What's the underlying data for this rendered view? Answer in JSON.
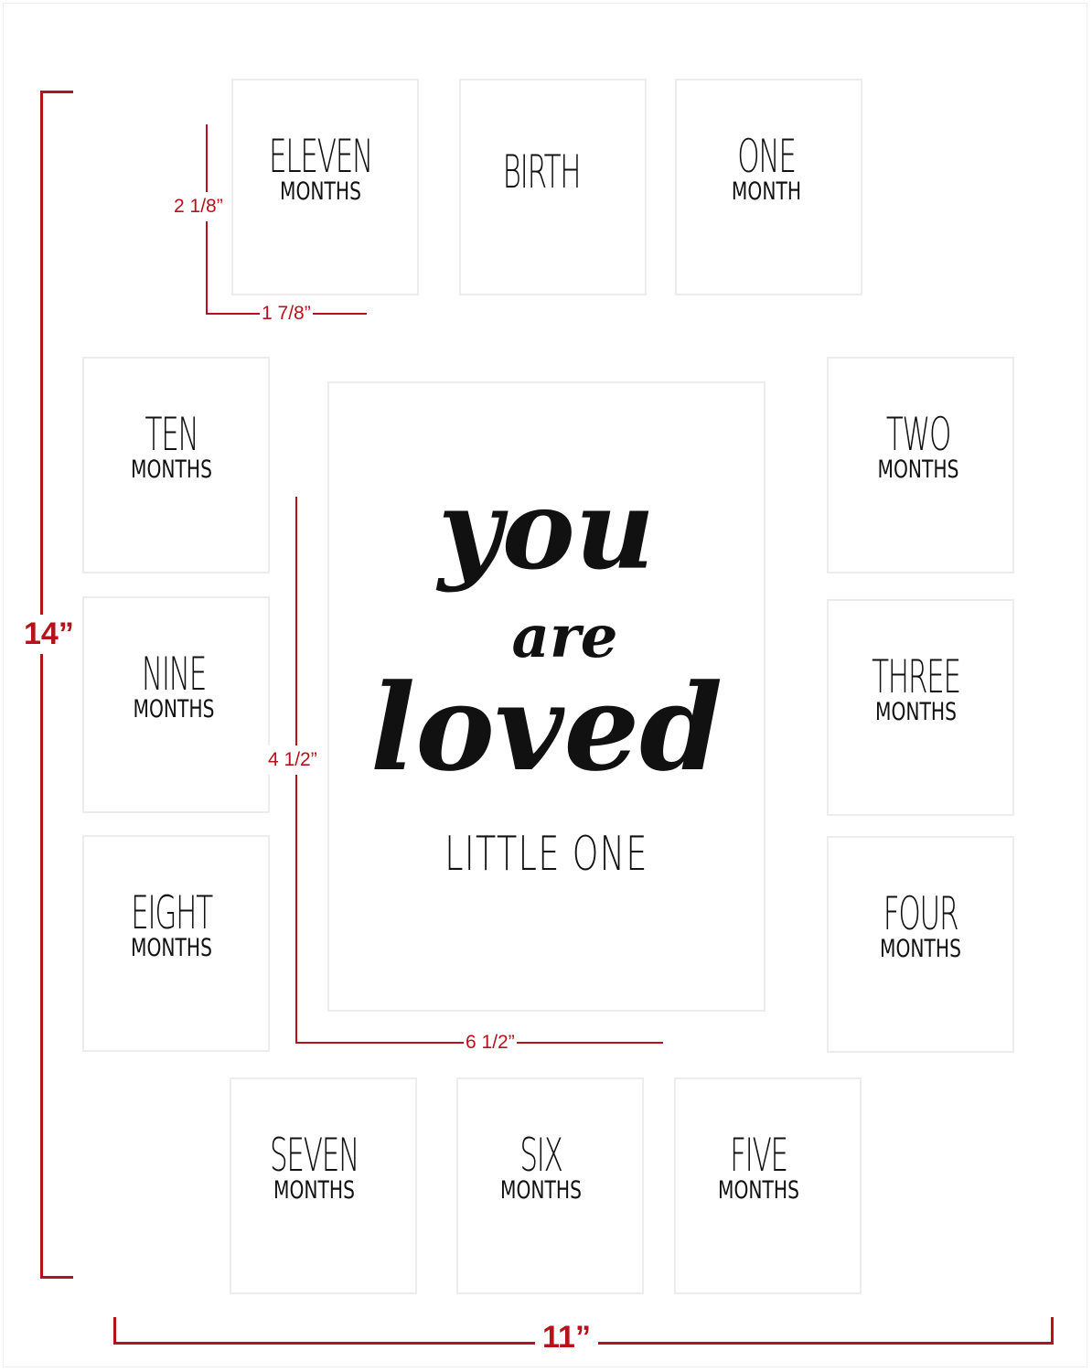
{
  "openings": [
    {
      "big": "ELEVEN",
      "small": "MONTHS"
    },
    {
      "big": "BIRTH",
      "small": ""
    },
    {
      "big": "ONE",
      "small": "MONTH"
    },
    {
      "big": "TEN",
      "small": "MONTHS"
    },
    {
      "big": "NINE",
      "small": "MONTHS"
    },
    {
      "big": "EIGHT",
      "small": "MONTHS"
    },
    {
      "big": "TWO",
      "small": "MONTHS"
    },
    {
      "big": "THREE",
      "small": "MONTHS"
    },
    {
      "big": "FOUR",
      "small": "MONTHS"
    },
    {
      "big": "SEVEN",
      "small": "MONTHS"
    },
    {
      "big": "SIX",
      "small": "MONTHS"
    },
    {
      "big": "FIVE",
      "small": "MONTHS"
    }
  ],
  "center": {
    "line1": "you",
    "line2": "are",
    "line3": "loved",
    "subtitle": "LITTLE ONE"
  },
  "dimensions": {
    "height": "14”",
    "width": "11”",
    "small_h": "2 1/8”",
    "small_w": "1 7/8”",
    "center_h": "4 1/2”",
    "center_w": "6 1/2”"
  },
  "colors": {
    "dimension": "#b5121b",
    "text": "#111111",
    "border": "#ececec"
  }
}
